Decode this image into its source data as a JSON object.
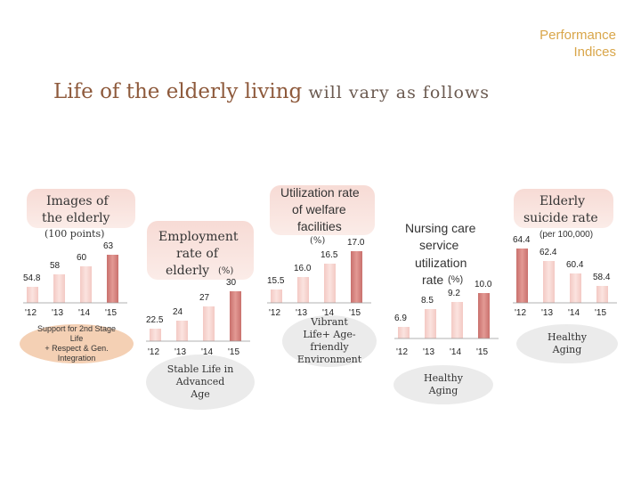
{
  "header": {
    "corner_line1": "Performance",
    "corner_line2": "Indices",
    "title_part1": "Life of the elderly living",
    "title_part2": " will vary as follows"
  },
  "chart_data": [
    {
      "type": "bar",
      "title": "Images of the elderly",
      "unit": "(100 points)",
      "categories": [
        "'12",
        "'13",
        "'14",
        "'15"
      ],
      "values": [
        54.8,
        58,
        60,
        63
      ],
      "value_labels": [
        "54.8",
        "58",
        "60",
        "63"
      ],
      "caption": [
        "Support for 2nd Stage",
        "Life",
        "+ Respect & Gen.",
        "Integration"
      ]
    },
    {
      "type": "bar",
      "title": "Employment rate of elderly",
      "unit": "(%)",
      "categories": [
        "'12",
        "'13",
        "'14",
        "'15"
      ],
      "values": [
        22.5,
        24,
        27,
        30
      ],
      "value_labels": [
        "22.5",
        "24",
        "27",
        "30"
      ],
      "caption": [
        "Stable Life in",
        "Advanced",
        "Age"
      ]
    },
    {
      "type": "bar",
      "title": "Utilization rate of welfare facilities",
      "unit": "(%)",
      "categories": [
        "'12",
        "'13",
        "'14",
        "'15"
      ],
      "values": [
        15.5,
        16.0,
        16.5,
        17.0
      ],
      "value_labels": [
        "15.5",
        "16.0",
        "16.5",
        "17.0"
      ],
      "caption": [
        "Vibrant",
        "Life+ Age-",
        "friendly",
        "Environment"
      ]
    },
    {
      "type": "bar",
      "title": "Nursing care service utilization rate",
      "unit": "(%)",
      "categories": [
        "'12",
        "'13",
        "'14",
        "'15"
      ],
      "values": [
        6.9,
        8.5,
        9.2,
        10.0
      ],
      "value_labels": [
        "6.9",
        "8.5",
        "9.2",
        "10.0"
      ],
      "caption": [
        "Healthy",
        "Aging"
      ]
    },
    {
      "type": "bar",
      "title": "Elderly suicide rate",
      "unit": "(per 100,000)",
      "categories": [
        "'12",
        "'13",
        "'14",
        "'15"
      ],
      "values": [
        64.4,
        62.4,
        60.4,
        58.4
      ],
      "value_labels": [
        "64.4",
        "62.4",
        "60.4",
        "58.4"
      ],
      "caption": [
        "Healthy",
        "Aging"
      ]
    }
  ],
  "labels": {
    "c1_title_1": "Images of",
    "c1_title_2": "the elderly",
    "c1_unit": "(100 points)",
    "c2_title_1": "Employment",
    "c2_title_2": "rate of",
    "c2_title_3": "elderly",
    "c2_unit": "(%)",
    "c3_title_1": "Utilization rate",
    "c3_title_2": "of welfare",
    "c3_title_3": "facilities",
    "c3_unit": "(%)",
    "c4_title_1": "Nursing care",
    "c4_title_2": "service",
    "c4_title_3": "utilization",
    "c4_title_4": "rate",
    "c4_unit": "(%)",
    "c5_title_1": "Elderly",
    "c5_title_2": "suicide rate",
    "c5_unit": "(per 100,000)"
  },
  "colors": {
    "light_bar": "#f6d2cd",
    "dark_bar": "#d4827e",
    "oval_peach": "#f4d0b4",
    "oval_gray": "#ebebeb"
  }
}
